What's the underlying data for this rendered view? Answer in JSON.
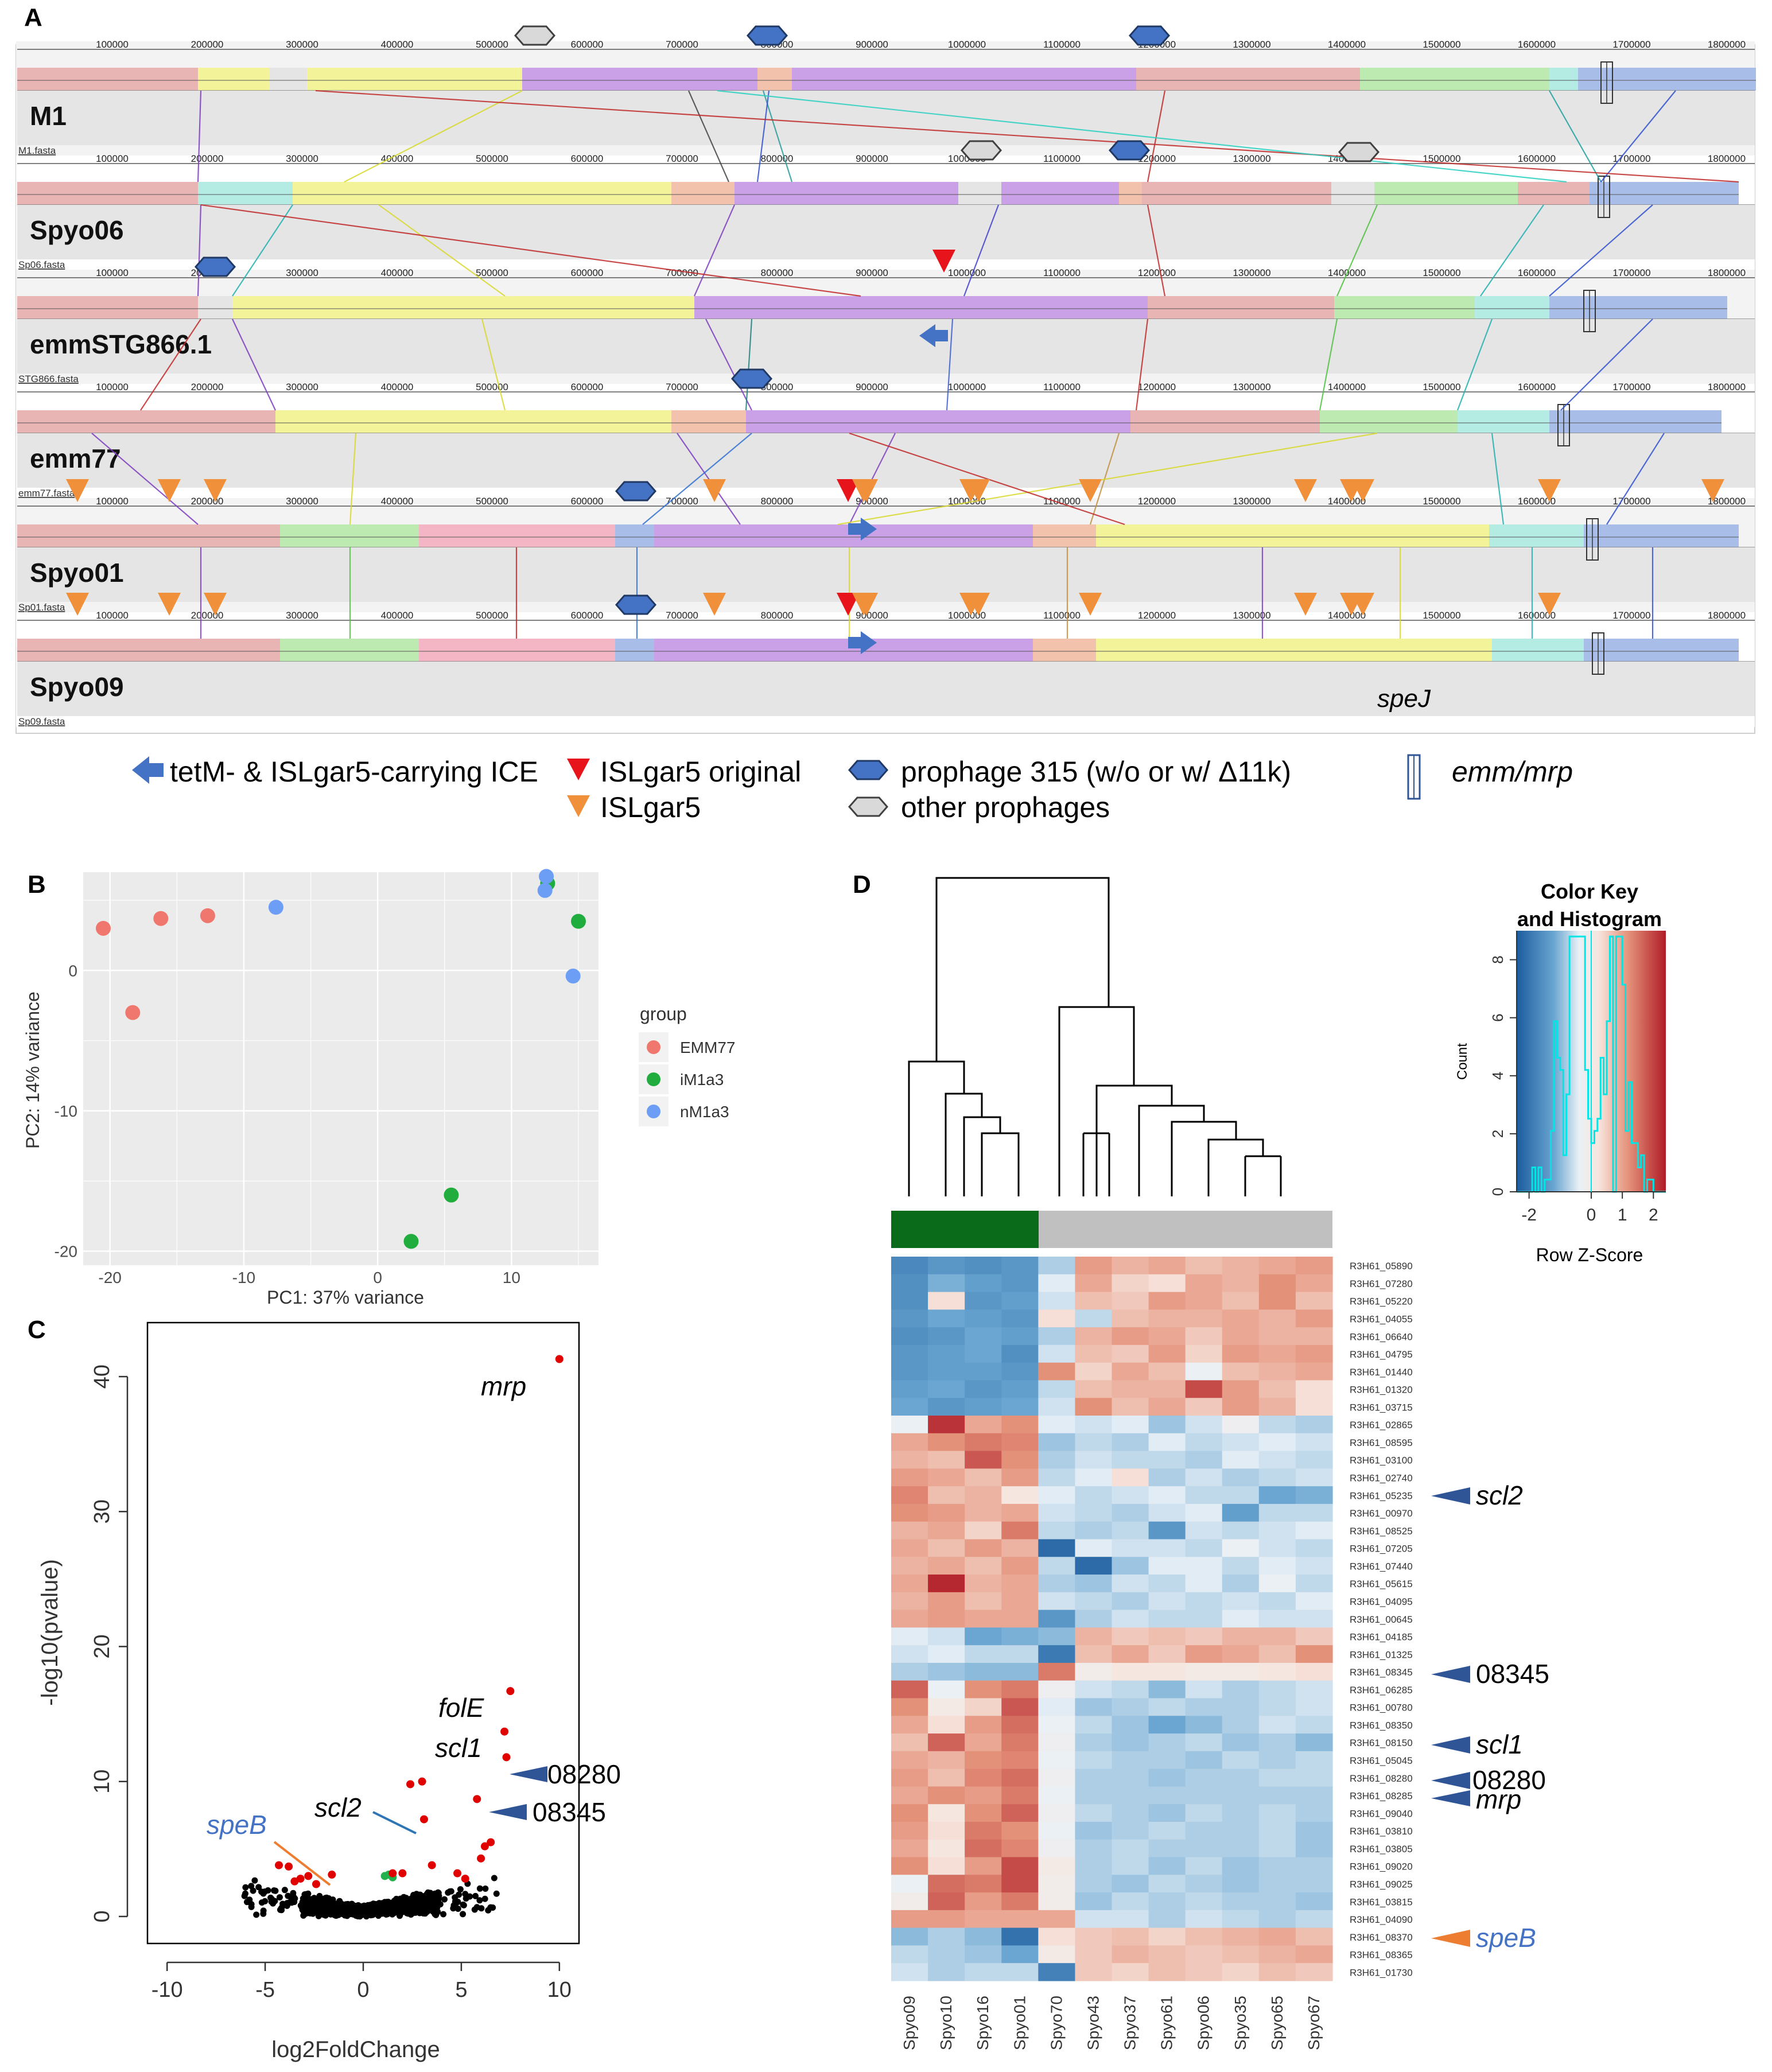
{
  "panels": {
    "a": "A",
    "b": "B",
    "c": "C",
    "d": "D"
  },
  "genome_ticks": [
    "100000",
    "200000",
    "300000",
    "400000",
    "500000",
    "600000",
    "700000",
    "800000",
    "900000",
    "1000000",
    "1100000",
    "1200000",
    "1300000",
    "1400000",
    "1500000",
    "1600000",
    "1700000",
    "1800000"
  ],
  "tracks": [
    {
      "name": "M1",
      "file": "M1.fasta"
    },
    {
      "name": "Spyo06",
      "file": "Sp06.fasta"
    },
    {
      "name": "emmSTG866.1",
      "file": "STG866.fasta"
    },
    {
      "name": "emm77",
      "file": "emm77.fasta"
    },
    {
      "name": "Spyo01",
      "file": "Sp01.fasta"
    },
    {
      "name": "Spyo09",
      "file": "Sp09.fasta"
    }
  ],
  "spej_label": "speJ",
  "legend_a": {
    "ice": "tetM- & ISLgar5-carrying ICE",
    "is_original": "ISLgar5 original",
    "is": "ISLgar5",
    "prophage315": "prophage 315 (w/o or w/ Δ11k)",
    "other_prophages": "other prophages",
    "emm": "emm/mrp"
  },
  "colors": {
    "red": "#e8b4b4",
    "yellow": "#f3f39a",
    "purple": "#caa0e6",
    "green": "#bdeab0",
    "cyan": "#b4ece4",
    "blue": "#a9bde9",
    "pink": "#f4b6c4",
    "salmon": "#f3c2ad",
    "track_bg": "#e5e5e5"
  },
  "pca": {
    "chart_data": {
      "type": "scatter",
      "xlabel": "PC1: 37% variance",
      "ylabel": "PC2: 14% variance",
      "xlim": [
        -22,
        16.5
      ],
      "ylim": [
        -21,
        7
      ],
      "xticks": [
        "-20",
        "-10",
        "0",
        "10"
      ],
      "yticks": [
        "-20",
        "-10",
        "0"
      ],
      "legend_title": "group",
      "series": [
        {
          "name": "EMM77",
          "color": "#f0776d",
          "points": [
            [
              -20.5,
              3
            ],
            [
              -18.3,
              -3
            ],
            [
              -16.2,
              3.7
            ],
            [
              -12.7,
              3.9
            ]
          ]
        },
        {
          "name": "iM1a3",
          "color": "#20ad3d",
          "points": [
            [
              12.7,
              6.2
            ],
            [
              15,
              3.5
            ],
            [
              5.5,
              -16
            ],
            [
              2.5,
              -19.3
            ]
          ]
        },
        {
          "name": "nM1a3",
          "color": "#6d9ef5",
          "points": [
            [
              -7.6,
              4.5
            ],
            [
              12.6,
              6.7
            ],
            [
              12.5,
              5.7
            ],
            [
              14.6,
              -0.4
            ]
          ]
        }
      ]
    }
  },
  "volcano": {
    "chart_data": {
      "type": "scatter",
      "xlabel": "log2FoldChange",
      "ylabel": "-log10(pvalue)",
      "xlim": [
        -11,
        11
      ],
      "ylim": [
        -2,
        44
      ],
      "xticks": [
        "-10",
        "-5",
        "0",
        "5",
        "10"
      ],
      "yticks": [
        "0",
        "10",
        "20",
        "30",
        "40"
      ],
      "red": [
        [
          10,
          41.3
        ],
        [
          7.5,
          16.7
        ],
        [
          7.2,
          13.7
        ],
        [
          7.3,
          11.8
        ],
        [
          5.8,
          8.7
        ],
        [
          2.4,
          9.8
        ],
        [
          3,
          10
        ],
        [
          6.2,
          5.2
        ],
        [
          6,
          4.3
        ],
        [
          6.5,
          5.5
        ],
        [
          5.2,
          2.8
        ],
        [
          4.8,
          3.2
        ],
        [
          3.5,
          3.8
        ],
        [
          3.1,
          7.2
        ],
        [
          -4.3,
          3.8
        ],
        [
          -3.8,
          3.7
        ],
        [
          -3.2,
          2.8
        ],
        [
          -2.8,
          3
        ],
        [
          -2.4,
          2.4
        ],
        [
          -1.6,
          3.1
        ],
        [
          -3.5,
          2.6
        ],
        [
          2,
          3.2
        ],
        [
          1.5,
          3.2
        ]
      ],
      "green": [
        [
          1.1,
          3
        ],
        [
          1.3,
          3.1
        ],
        [
          1.5,
          2.9
        ]
      ],
      "labels": {
        "mrp": "mrp",
        "folE": "folE",
        "scl1": "scl1",
        "n08280": "08280",
        "scl2": "scl2",
        "n08345": "08345",
        "speB": "speB"
      }
    }
  },
  "heatmap": {
    "color_key_title": "Color Key",
    "color_key_subtitle": "and Histogram",
    "count_label": "Count",
    "zscore_label": "Row Z-Score",
    "key_xticks": [
      "-2",
      "0",
      "1",
      "2"
    ],
    "key_yticks": [
      "0",
      "2",
      "4",
      "6",
      "8"
    ],
    "chart_data": {
      "type": "heatmap",
      "columns": [
        "Spyo09",
        "Spyo10",
        "Spyo16",
        "Spyo01",
        "Spyo70",
        "Spyo43",
        "Spyo37",
        "Spyo61",
        "Spyo06",
        "Spyo35",
        "Spyo65",
        "Spyo67"
      ],
      "rows": [
        "R3H61_05890",
        "R3H61_07280",
        "R3H61_05220",
        "R3H61_04055",
        "R3H61_06640",
        "R3H61_04795",
        "R3H61_01440",
        "R3H61_01320",
        "R3H61_03715",
        "R3H61_02865",
        "R3H61_08595",
        "R3H61_03100",
        "R3H61_02740",
        "R3H61_05235",
        "R3H61_00970",
        "R3H61_08525",
        "R3H61_07205",
        "R3H61_07440",
        "R3H61_05615",
        "R3H61_04095",
        "R3H61_00645",
        "R3H61_04185",
        "R3H61_01325",
        "R3H61_08345",
        "R3H61_06285",
        "R3H61_00780",
        "R3H61_08350",
        "R3H61_08150",
        "R3H61_05045",
        "R3H61_08280",
        "R3H61_08285",
        "R3H61_09040",
        "R3H61_03810",
        "R3H61_03805",
        "R3H61_09020",
        "R3H61_09025",
        "R3H61_03815",
        "R3H61_04090",
        "R3H61_08370",
        "R3H61_08365",
        "R3H61_01730"
      ],
      "value_range": [
        -2,
        2
      ]
    },
    "annotations": {
      "scl2": "scl2",
      "n08345": "08345",
      "scl1": "scl1",
      "n08280": "08280",
      "mrp": "mrp",
      "speB": "speB"
    }
  }
}
